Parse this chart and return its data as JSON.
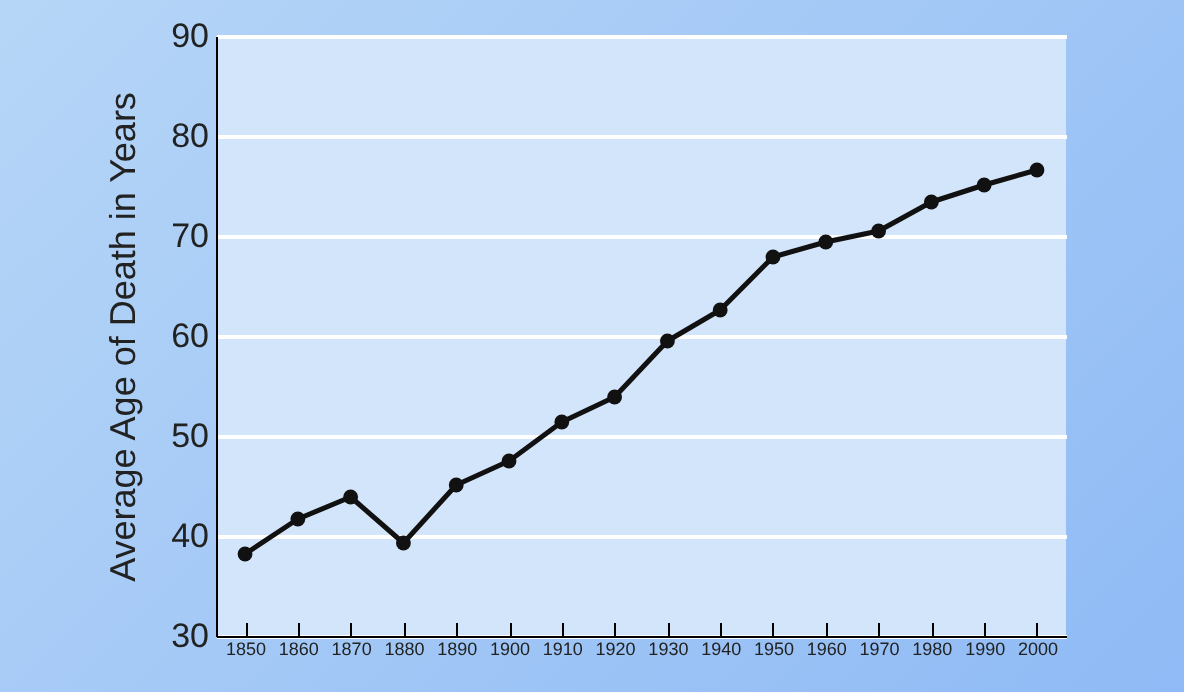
{
  "chart_data": {
    "type": "line",
    "ylabel": "Average Age of Death in Years",
    "categories": [
      "1850",
      "1860",
      "1870",
      "1880",
      "1890",
      "1900",
      "1910",
      "1920",
      "1930",
      "1940",
      "1950",
      "1960",
      "1970",
      "1980",
      "1990",
      "2000"
    ],
    "series": [
      {
        "color": "#111111",
        "values": [
          38.2,
          41.7,
          43.9,
          39.3,
          45.1,
          47.5,
          51.4,
          53.9,
          59.5,
          62.6,
          67.9,
          69.4,
          70.5,
          73.4,
          75.1,
          76.6
        ]
      }
    ],
    "ylim": [
      30,
      90
    ],
    "yticks": [
      30,
      40,
      50,
      60,
      70,
      80,
      90
    ],
    "grid": "y",
    "marker": "circle"
  }
}
